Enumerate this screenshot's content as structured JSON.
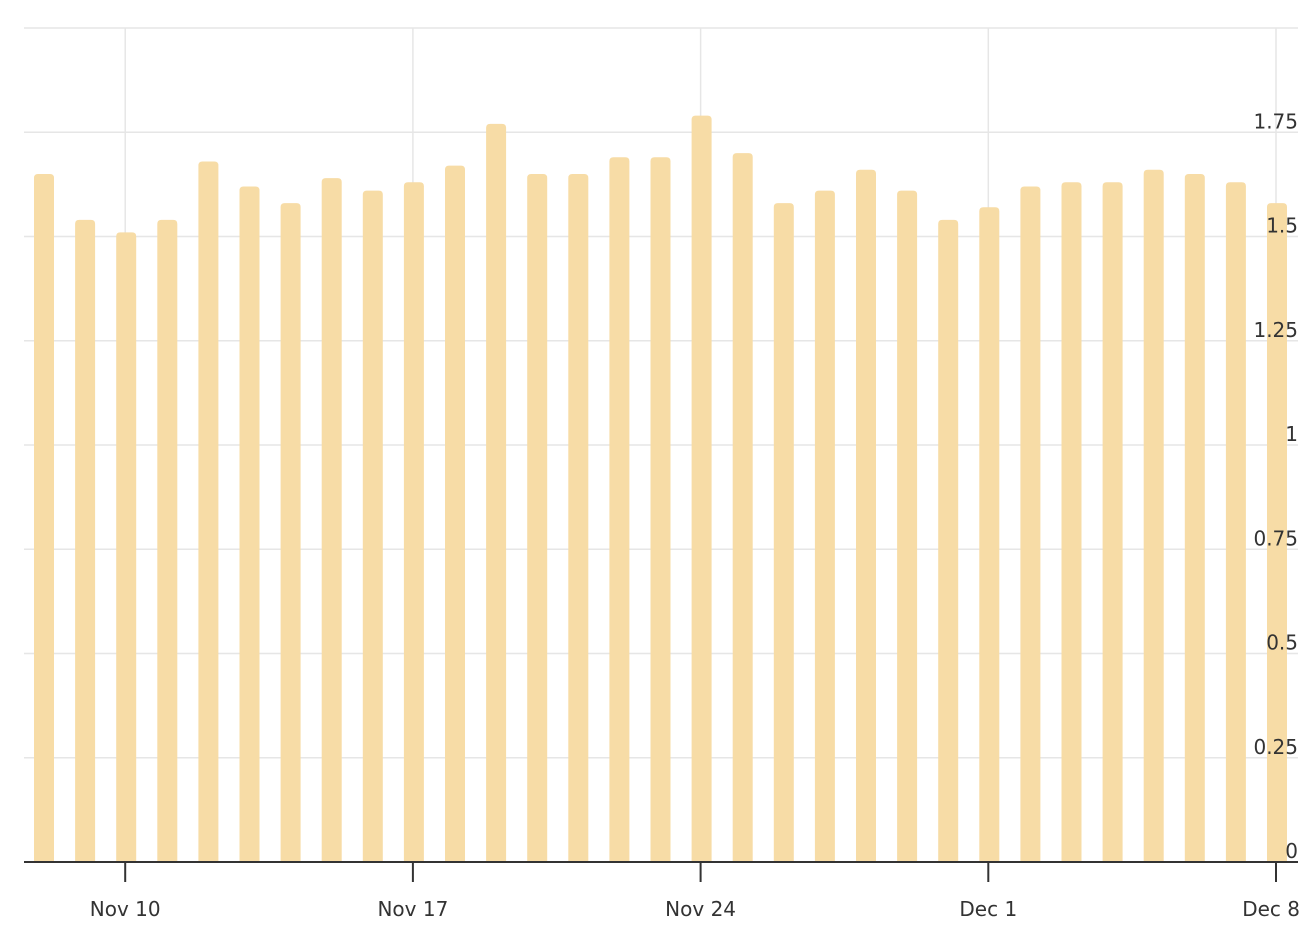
{
  "chart_data": {
    "type": "bar",
    "title": "",
    "xlabel": "",
    "ylabel": "",
    "x": [
      "2024-11-08",
      "2024-11-09",
      "2024-11-10",
      "2024-11-11",
      "2024-11-12",
      "2024-11-13",
      "2024-11-14",
      "2024-11-15",
      "2024-11-16",
      "2024-11-17",
      "2024-11-18",
      "2024-11-19",
      "2024-11-20",
      "2024-11-21",
      "2024-11-22",
      "2024-11-23",
      "2024-11-24",
      "2024-11-25",
      "2024-11-26",
      "2024-11-27",
      "2024-11-28",
      "2024-11-29",
      "2024-11-30",
      "2024-12-01",
      "2024-12-02",
      "2024-12-03",
      "2024-12-04",
      "2024-12-05",
      "2024-12-06",
      "2024-12-07",
      "2024-12-08"
    ],
    "values": [
      1.65,
      1.54,
      1.51,
      1.54,
      1.68,
      1.62,
      1.58,
      1.64,
      1.61,
      1.63,
      1.67,
      1.77,
      1.65,
      1.65,
      1.69,
      1.69,
      1.79,
      1.7,
      1.58,
      1.61,
      1.66,
      1.61,
      1.54,
      1.57,
      1.62,
      1.63,
      1.63,
      1.66,
      1.65,
      1.63,
      1.58
    ],
    "ylim": [
      0,
      2.0
    ],
    "y_ticks": [
      {
        "value": 0,
        "label": "0"
      },
      {
        "value": 0.25,
        "label": "0.25"
      },
      {
        "value": 0.5,
        "label": "0.5"
      },
      {
        "value": 0.75,
        "label": "0.75"
      },
      {
        "value": 1,
        "label": "1"
      },
      {
        "value": 1.25,
        "label": "1.25"
      },
      {
        "value": 1.5,
        "label": "1.5"
      },
      {
        "value": 1.75,
        "label": "1.75"
      }
    ],
    "x_ticks": [
      {
        "date": "2024-11-10",
        "label": "Nov 10"
      },
      {
        "date": "2024-11-17",
        "label": "Nov 17"
      },
      {
        "date": "2024-11-24",
        "label": "Nov 24"
      },
      {
        "date": "2024-12-01",
        "label": "Dec 1"
      },
      {
        "date": "2024-12-08",
        "label": "Dec 8"
      }
    ],
    "y_axis_side": "right",
    "grid": true,
    "colors": {
      "bar": "#f7dca6",
      "grid": "#e6e6e6",
      "axis": "#333333",
      "text": "#333333"
    }
  }
}
